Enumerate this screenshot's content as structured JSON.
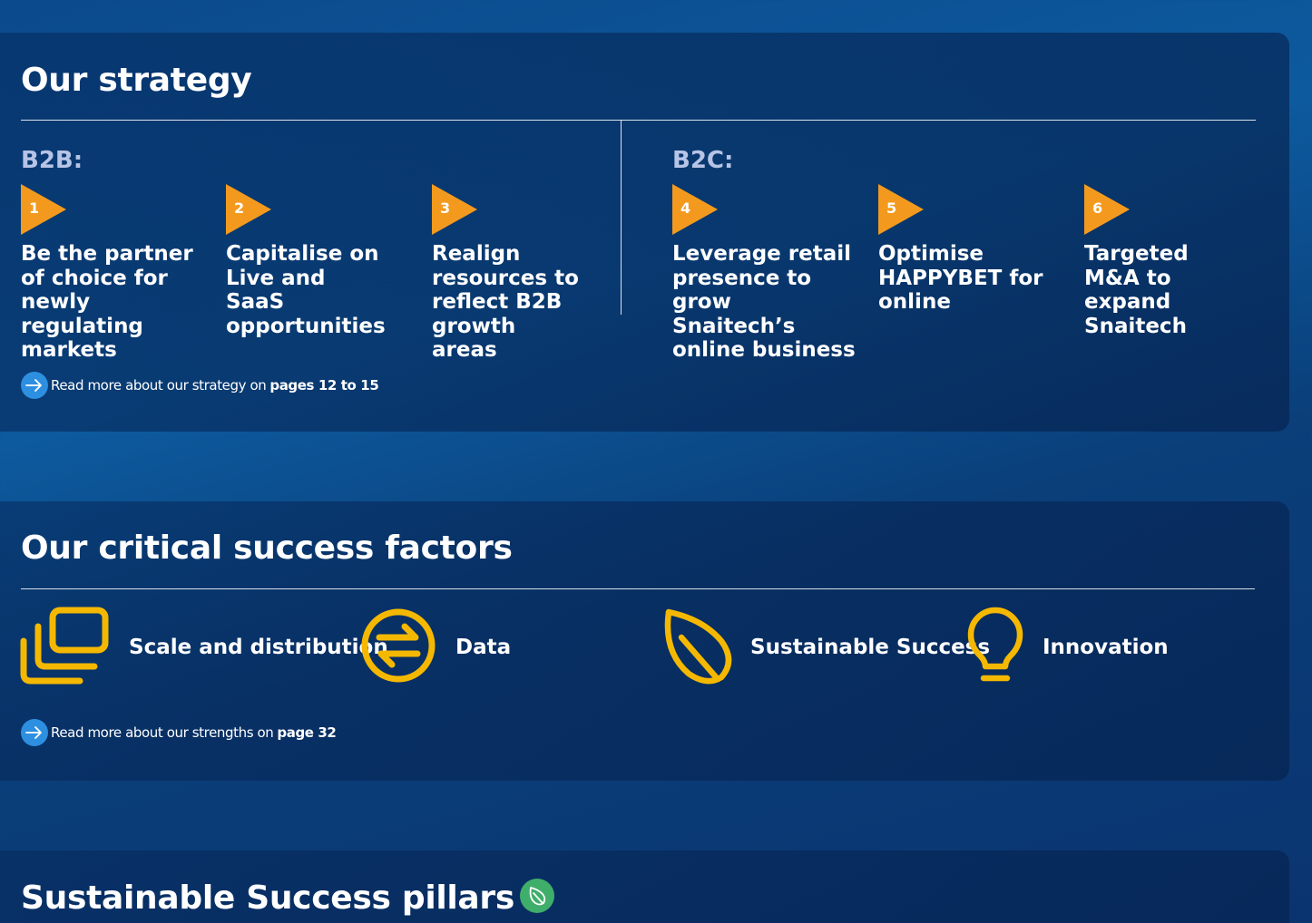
{
  "strategy": {
    "title": "Our strategy",
    "b2b_label": "B2B:",
    "b2c_label": "B2C:",
    "steps": [
      {
        "num": "1",
        "text": "Be the partner of choice for newly regulating markets"
      },
      {
        "num": "2",
        "text": "Capitalise on Live and SaaS opportunities"
      },
      {
        "num": "3",
        "text": "Realign resources to reflect B2B growth areas"
      },
      {
        "num": "4",
        "text": "Leverage retail presence to grow Snaitech’s online business"
      },
      {
        "num": "5",
        "text": "Optimise HAPPYBET for online"
      },
      {
        "num": "6",
        "text": "Targeted M&A to expand Snaitech"
      }
    ],
    "readmore_text": "Read more about our strategy on",
    "readmore_pages": "pages 12 to 15"
  },
  "csf": {
    "title": "Our critical success factors",
    "factors": [
      {
        "label": "Scale and distribution",
        "icon": "stacked-windows-icon"
      },
      {
        "label": "Data",
        "icon": "exchange-arrows-icon"
      },
      {
        "label": "Sustainable Success",
        "icon": "leaf-icon"
      },
      {
        "label": "Innovation",
        "icon": "lightbulb-icon"
      }
    ],
    "readmore_text": "Read more about our strengths on",
    "readmore_pages": "page 32"
  },
  "pillars": {
    "title": "Sustainable Success pillars"
  },
  "colors": {
    "arrow": "#f39a1e",
    "icon": "#f5b800",
    "readmore_circle": "#2d8fe0",
    "leaf_badge": "#3fae6a",
    "group_label": "#b7c4e6"
  }
}
